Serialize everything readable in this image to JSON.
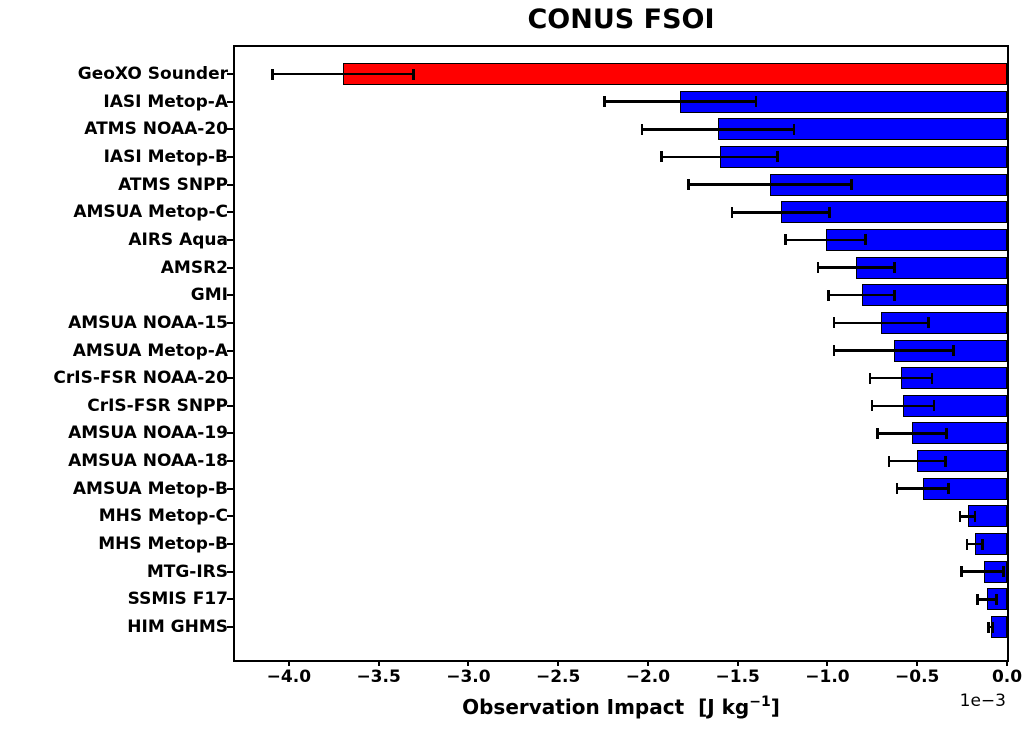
{
  "figure": {
    "title": "CONUS FSOI",
    "xlabel_prefix": "Observation Impact  [J kg",
    "xlabel_sup": "−1",
    "xlabel_suffix": "]",
    "offset_text": "1e−3",
    "background_color": "#ffffff",
    "highlight_color": "#ff0000",
    "default_bar_color": "#0000ff",
    "edge_color": "#000000"
  },
  "chart_data": {
    "type": "bar",
    "orientation": "horizontal",
    "title": "CONUS FSOI",
    "xlabel": "Observation Impact [J kg⁻¹]",
    "x_unit_scale": "1e-3",
    "xlim": [
      -4.3,
      0.0
    ],
    "grid": false,
    "legend": "none",
    "x_ticks": [
      -4.0,
      -3.5,
      -3.0,
      -2.5,
      -2.0,
      -1.5,
      -1.0,
      -0.5,
      0.0
    ],
    "x_tick_labels": [
      "−4.0",
      "−3.5",
      "−3.0",
      "−2.5",
      "−2.0",
      "−1.5",
      "−1.0",
      "−0.5",
      "0.0"
    ],
    "categories": [
      "GeoXO Sounder",
      "IASI Metop-A",
      "ATMS NOAA-20",
      "IASI Metop-B",
      "ATMS SNPP",
      "AMSUA Metop-C",
      "AIRS Aqua",
      "AMSR2",
      "GMI",
      "AMSUA NOAA-15",
      "AMSUA Metop-A",
      "CrIS-FSR NOAA-20",
      "CrIS-FSR SNPP",
      "AMSUA NOAA-19",
      "AMSUA NOAA-18",
      "AMSUA Metop-B",
      "MHS Metop-C",
      "MHS Metop-B",
      "MTG-IRS",
      "SSMIS F17",
      "HIM GHMS"
    ],
    "values": [
      -3.7,
      -1.82,
      -1.61,
      -1.6,
      -1.32,
      -1.26,
      -1.01,
      -0.84,
      -0.81,
      -0.7,
      -0.63,
      -0.59,
      -0.58,
      -0.53,
      -0.5,
      -0.47,
      -0.22,
      -0.18,
      -0.13,
      -0.11,
      -0.09
    ],
    "errors": [
      0.4,
      0.43,
      0.43,
      0.33,
      0.46,
      0.28,
      0.23,
      0.22,
      0.19,
      0.27,
      0.34,
      0.18,
      0.18,
      0.2,
      0.165,
      0.15,
      0.05,
      0.05,
      0.13,
      0.06,
      0.02
    ],
    "colors": [
      "#ff0000",
      "#0000ff",
      "#0000ff",
      "#0000ff",
      "#0000ff",
      "#0000ff",
      "#0000ff",
      "#0000ff",
      "#0000ff",
      "#0000ff",
      "#0000ff",
      "#0000ff",
      "#0000ff",
      "#0000ff",
      "#0000ff",
      "#0000ff",
      "#0000ff",
      "#0000ff",
      "#0000ff",
      "#0000ff",
      "#0000ff"
    ]
  }
}
